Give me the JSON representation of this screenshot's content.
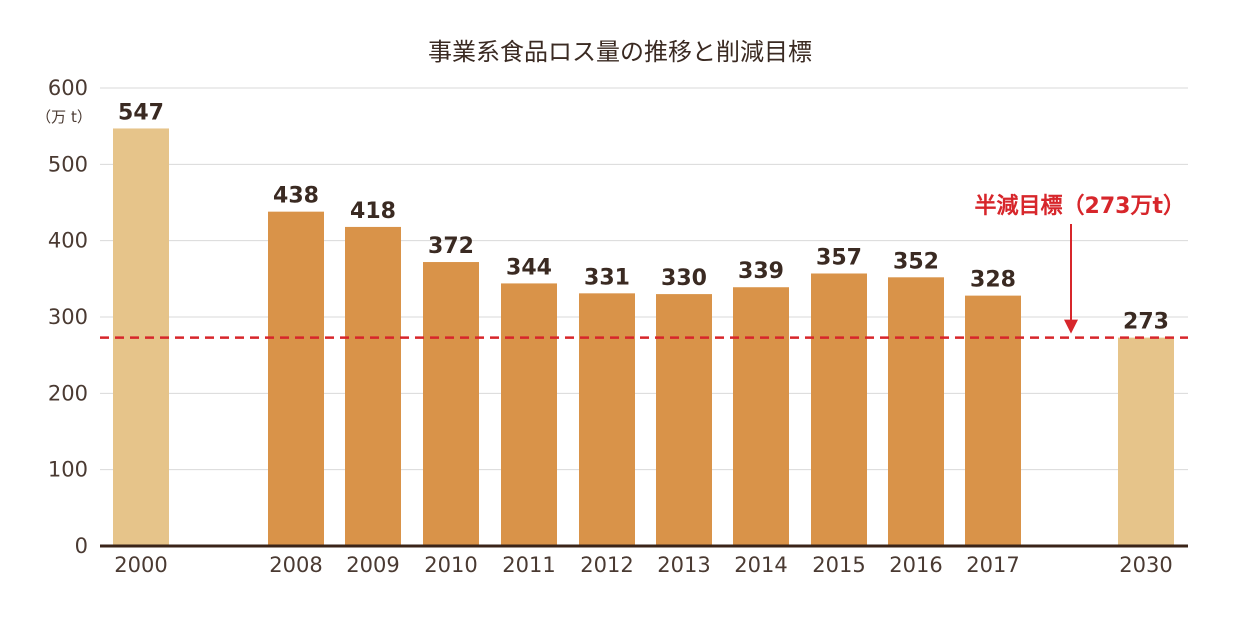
{
  "chart_data": {
    "type": "bar",
    "title": "事業系食品ロス量の推移と削減目標",
    "unit_label": "（万 t）",
    "categories": [
      "2000",
      "2008",
      "2009",
      "2010",
      "2011",
      "2012",
      "2013",
      "2014",
      "2015",
      "2016",
      "2017",
      "2030"
    ],
    "values": [
      547,
      438,
      418,
      372,
      344,
      331,
      330,
      339,
      357,
      352,
      328,
      273
    ],
    "highlight_categories": [
      "2000",
      "2030"
    ],
    "ylim": [
      0,
      600
    ],
    "yticks": [
      "0",
      "100",
      "200",
      "300",
      "400",
      "500",
      "600"
    ],
    "grid": true,
    "target": {
      "value": 273,
      "label": "半減目標（273万t）"
    },
    "colors": {
      "bar": "#d99349",
      "bar_highlight": "#e6c48a",
      "target": "#d7262b",
      "grid": "#d9d9d9",
      "axis": "#3a2418"
    }
  }
}
